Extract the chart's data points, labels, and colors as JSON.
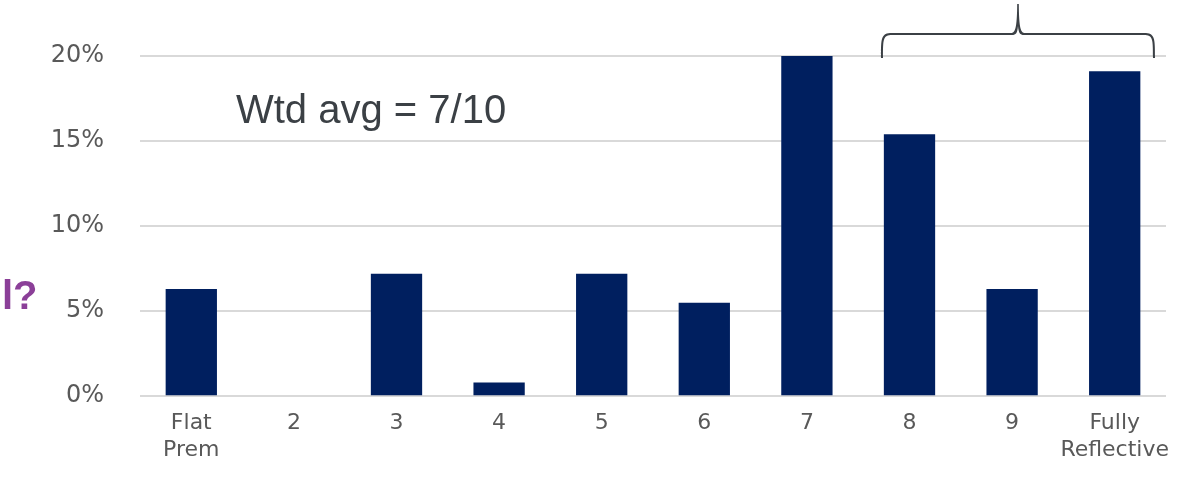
{
  "chart_data": {
    "type": "bar",
    "categories": [
      "Flat Prem",
      "2",
      "3",
      "4",
      "5",
      "6",
      "7",
      "8",
      "9",
      "Fully Reflective"
    ],
    "values": [
      6.3,
      0,
      7.2,
      0.8,
      7.2,
      5.5,
      20,
      15.4,
      6.3,
      19.1
    ],
    "color": "#001f5f",
    "ylim": [
      0,
      20
    ],
    "yticks": [
      {
        "value": 0,
        "label": "0%"
      },
      {
        "value": 5,
        "label": "5%"
      },
      {
        "value": 10,
        "label": "10%"
      },
      {
        "value": 15,
        "label": "15%"
      },
      {
        "value": 20,
        "label": "20%"
      }
    ],
    "grid": "y",
    "legend": false,
    "annotations": [
      "Wtd avg = 7/10",
      "l?"
    ]
  }
}
